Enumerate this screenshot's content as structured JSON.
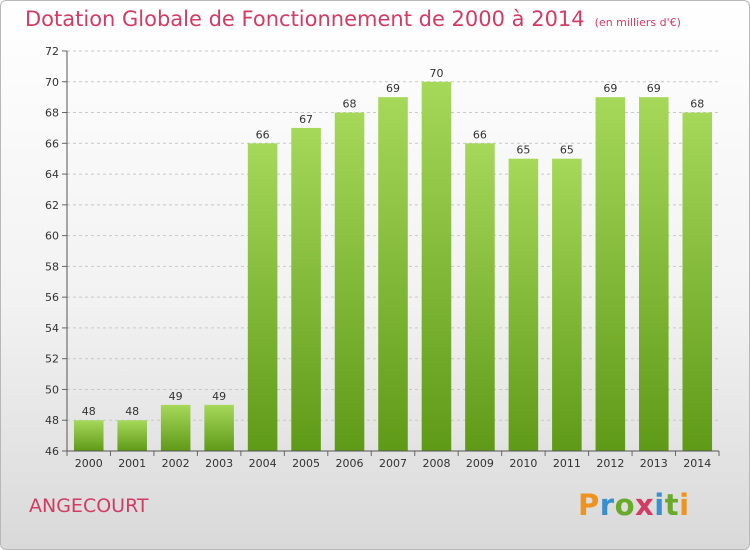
{
  "chart_data": {
    "type": "bar",
    "title": "Dotation Globale de Fonctionnement de 2000 à 2014",
    "subtitle": "(en milliers d'€)",
    "categories": [
      "2000",
      "2001",
      "2002",
      "2003",
      "2004",
      "2005",
      "2006",
      "2007",
      "2008",
      "2009",
      "2010",
      "2011",
      "2012",
      "2013",
      "2014"
    ],
    "values": [
      48,
      48,
      49,
      49,
      66,
      67,
      68,
      69,
      70,
      66,
      65,
      65,
      69,
      69,
      68
    ],
    "ylim": [
      46,
      72
    ],
    "yticks": [
      46,
      48,
      50,
      52,
      54,
      56,
      58,
      60,
      62,
      64,
      66,
      68,
      70,
      72
    ],
    "grid": true,
    "bar_color": "#7dbb2a",
    "legend": "none"
  },
  "footer": {
    "commune": "ANGECOURT",
    "logo": "Proxiti"
  },
  "colors": {
    "title": "#d33b63",
    "logo_letters": [
      "#f0921e",
      "#3a8fd0",
      "#6aaa2a",
      "#d33b63",
      "#3a8fd0",
      "#6aaa2a",
      "#f0921e"
    ]
  }
}
